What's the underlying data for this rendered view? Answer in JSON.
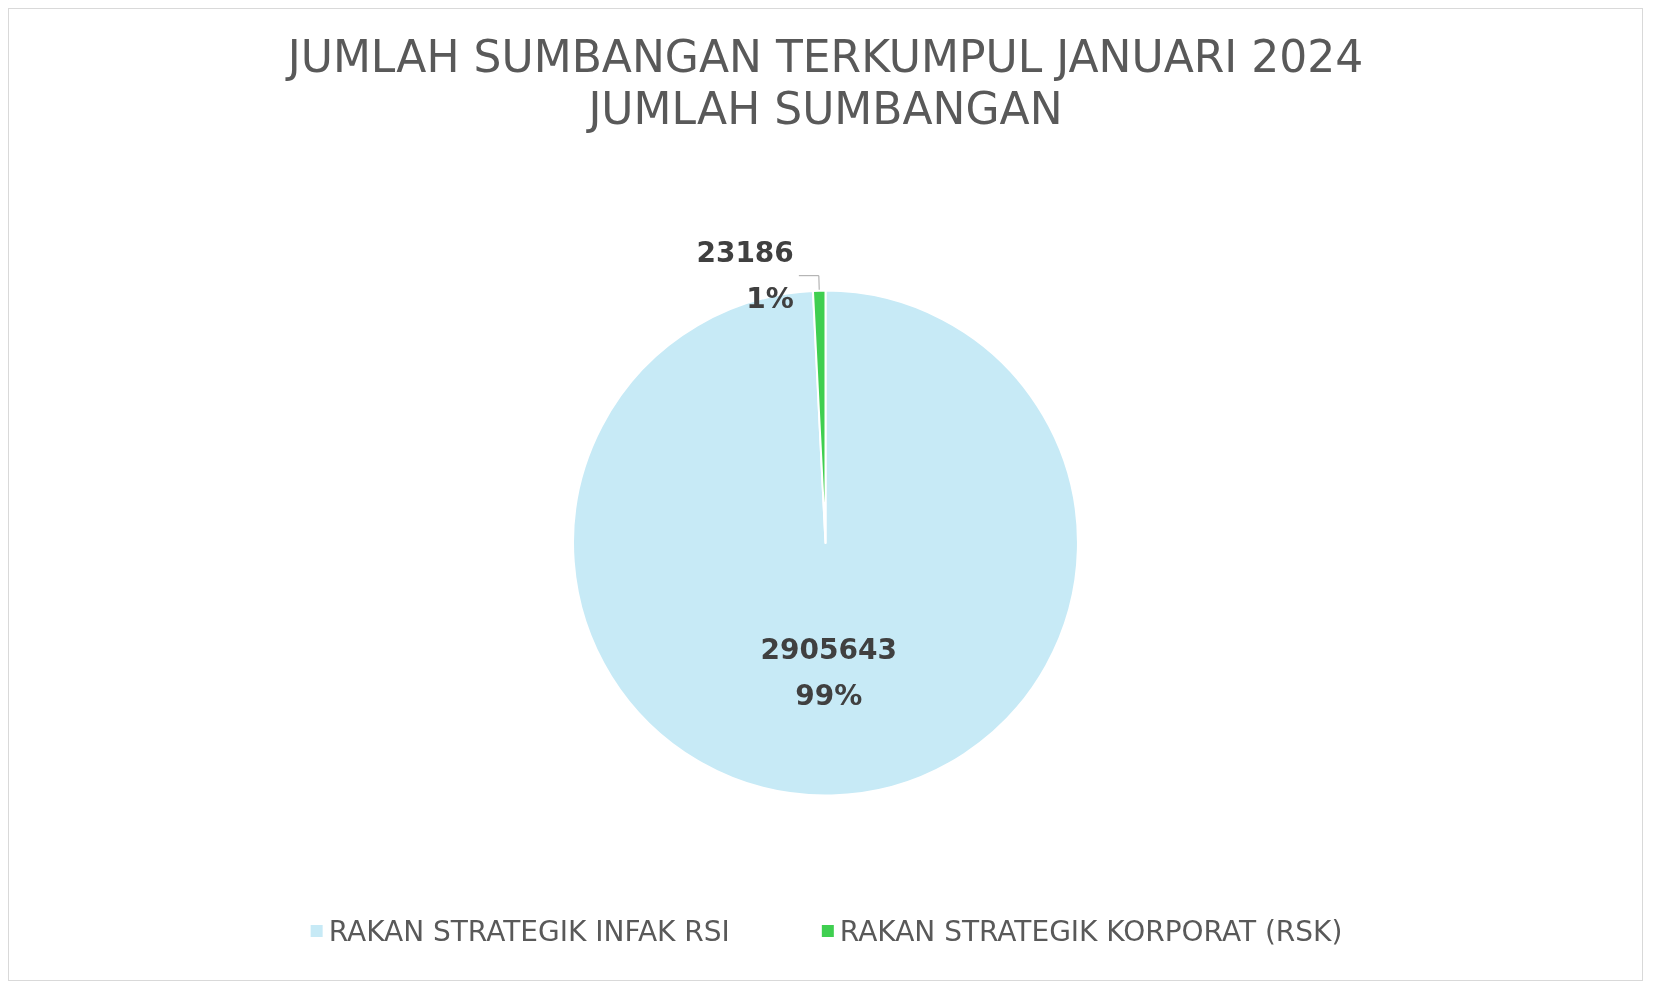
{
  "chart_data": {
    "type": "pie",
    "title": "JUMLAH SUMBANGAN TERKUMPUL JANUARI 2024",
    "subtitle": "JUMLAH SUMBANGAN",
    "categories": [
      "RAKAN STRATEGIK INFAK RSI",
      "RAKAN STRATEGIK KORPORAT (RSK)"
    ],
    "values": [
      2905643,
      23186
    ],
    "colors": [
      "#c7eaf6",
      "#3fcf50"
    ],
    "value_labels": [
      "2905643\n99%",
      "23186\n1%"
    ],
    "legend": "bottom"
  }
}
